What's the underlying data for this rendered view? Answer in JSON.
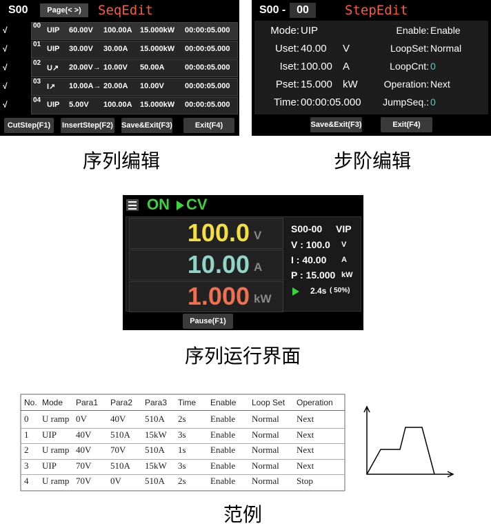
{
  "seq_edit": {
    "sequence": "S00",
    "page_button": "Page(< >)",
    "title": "SeqEdit",
    "rows": [
      {
        "flag": "√",
        "index": "00",
        "mode": "UIP",
        "para1": "60.00V",
        "para2": "100.00A",
        "para3": "15.000kW",
        "time": "00:00:05.000"
      },
      {
        "flag": "√",
        "index": "01",
        "mode": "UIP",
        "para1": "30.00V",
        "para2": "30.00A",
        "para3": "15.000kW",
        "time": "00:00:05.000"
      },
      {
        "flag": "√",
        "index": "02",
        "mode": "U↗",
        "para1": "20.00V→",
        "para2": "10.00V",
        "para3": "50.00A",
        "time": "00:00:05.000"
      },
      {
        "flag": "√",
        "index": "03",
        "mode": "I↗",
        "para1": "10.00A→",
        "para2": "20.00A",
        "para3": "10.00V",
        "time": "00:00:05.000"
      },
      {
        "flag": "√",
        "index": "04",
        "mode": "UIP",
        "para1": "5.00V",
        "para2": "100.00A",
        "para3": "15.000kW",
        "time": "00:00:05.000"
      }
    ],
    "buttons": [
      "CutStep(F1)",
      "InsertStep(F2)",
      "Save&Exit(F3)",
      "Exit(F4)"
    ]
  },
  "seq_edit_caption": "序列编辑",
  "step_edit": {
    "sequence": "S00 -",
    "step": "00",
    "title": "StepEdit",
    "left": [
      {
        "label": "Mode:",
        "value": "UIP",
        "unit": ""
      },
      {
        "label": "Uset:",
        "value": "40.00",
        "unit": "V"
      },
      {
        "label": "Iset:",
        "value": "100.00",
        "unit": "A"
      },
      {
        "label": "Pset:",
        "value": "15.000",
        "unit": "kW"
      },
      {
        "label": "Time:",
        "value": "00:00:05.000",
        "unit": ""
      }
    ],
    "right": [
      {
        "label": "Enable:",
        "value": "Enable"
      },
      {
        "label": "LoopSet:",
        "value": "Normal"
      },
      {
        "label": "LoopCnt:",
        "value": "0"
      },
      {
        "label": "Operation:",
        "value": "Next"
      },
      {
        "label": "JumpSeq.:",
        "value": "0"
      }
    ],
    "buttons": [
      "Save&Exit(F3)",
      "Exit(F4)"
    ]
  },
  "step_edit_caption": "步阶编辑",
  "run": {
    "state": "ON",
    "mode": "CV",
    "readings": [
      {
        "value": "100.0",
        "unit": "V"
      },
      {
        "value": "10.00",
        "unit": "A"
      },
      {
        "value": "1.000",
        "unit": "kW"
      }
    ],
    "step": "S00-00",
    "step_mode": "VIP",
    "settings": [
      {
        "label": "V : 100.0",
        "unit": "V"
      },
      {
        "label": "I : 40.00",
        "unit": "A"
      },
      {
        "label": "P : 15.000",
        "unit": "kW"
      }
    ],
    "elapsed": "2.4s",
    "progress": "( 50%)",
    "button": "Pause(F1)"
  },
  "run_caption": "序列运行界面",
  "table": {
    "header": [
      "No.",
      "Mode",
      "Para1",
      "Para2",
      "Para3",
      "Time",
      "Enable",
      "Loop Set",
      "Operation"
    ],
    "rows": [
      [
        "0",
        "U ramp",
        "0V",
        "40V",
        "510A",
        "2s",
        "Enable",
        "Normal",
        "Next"
      ],
      [
        "1",
        "UIP",
        "40V",
        "510A",
        "15kW",
        "3s",
        "Enable",
        "Normal",
        "Next"
      ],
      [
        "2",
        "U ramp",
        "40V",
        "70V",
        "510A",
        "1s",
        "Enable",
        "Normal",
        "Next"
      ],
      [
        "3",
        "UIP",
        "70V",
        "510A",
        "15kW",
        "3s",
        "Enable",
        "Normal",
        "Next"
      ],
      [
        "4",
        "U ramp",
        "70V",
        "0V",
        "510A",
        "2s",
        "Enable",
        "Normal",
        "Stop"
      ]
    ]
  },
  "example_caption": "范例"
}
